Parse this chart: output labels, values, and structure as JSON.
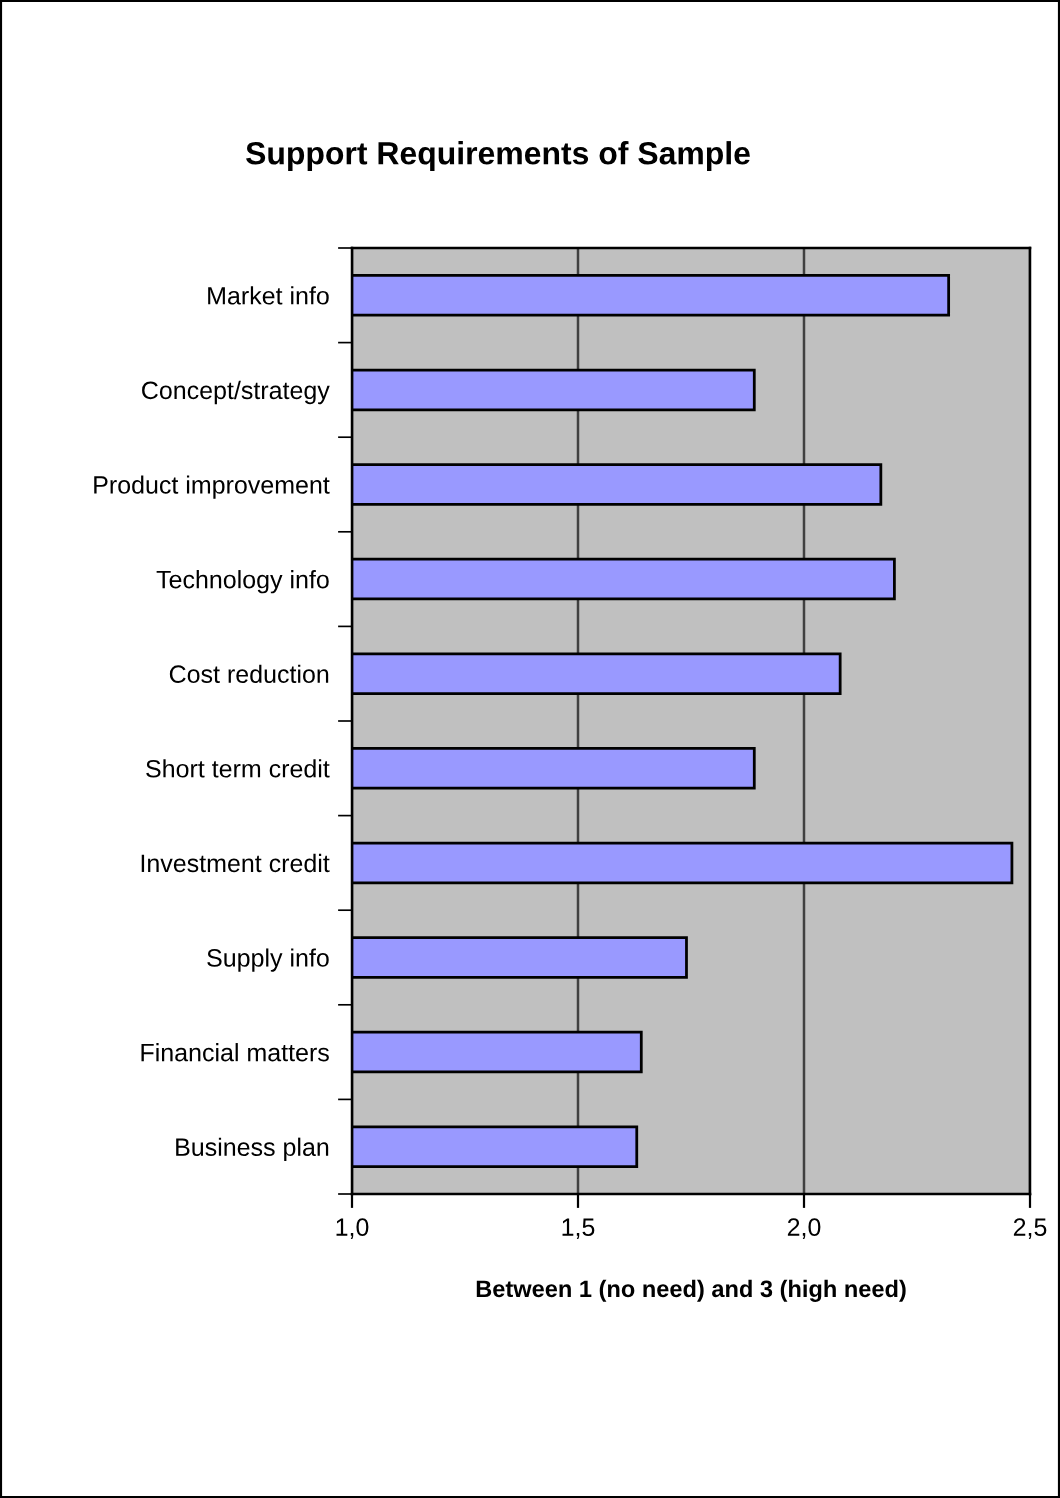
{
  "chart_data": {
    "type": "bar",
    "orientation": "horizontal",
    "title": "Support Requirements of Sample",
    "xlabel": "Between 1 (no need) and 3 (high need)",
    "categories": [
      "Market info",
      "Concept/strategy",
      "Product improvement",
      "Technology info",
      "Cost reduction",
      "Short term credit",
      "Investment credit",
      "Supply info",
      "Financial matters",
      "Business plan"
    ],
    "values": [
      2.32,
      1.89,
      2.17,
      2.2,
      2.08,
      1.89,
      2.46,
      1.74,
      1.64,
      1.63
    ],
    "color": "#9999ff",
    "xlim": [
      1.0,
      2.5
    ],
    "xticks": [
      {
        "value": 1.0,
        "label": "1,0"
      },
      {
        "value": 1.5,
        "label": "1,5"
      },
      {
        "value": 2.0,
        "label": "2,0"
      },
      {
        "value": 2.5,
        "label": "2,5"
      }
    ],
    "grid": "x"
  }
}
